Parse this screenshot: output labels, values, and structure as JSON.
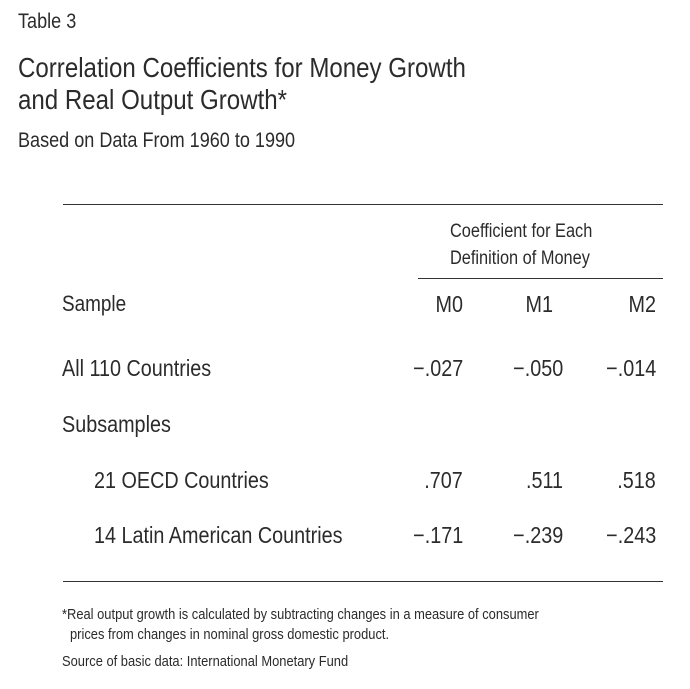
{
  "table_label": "Table 3",
  "title_line1": "Correlation Coefficients for Money Growth",
  "title_line2": "and Real Output Growth*",
  "subtitle": "Based on Data From 1960 to 1990",
  "span_header_line1": "Coefficient for Each",
  "span_header_line2": "Definition of Money",
  "columns": {
    "sample": "Sample",
    "m0": "M0",
    "m1": "M1",
    "m2": "M2"
  },
  "rows": [
    {
      "label": "All 110 Countries",
      "m0": "−.027",
      "m1": "−.050",
      "m2": "−.014"
    },
    {
      "label": "Subsamples"
    },
    {
      "label": "21 OECD Countries",
      "m0": ".707",
      "m1": ".511",
      "m2": ".518"
    },
    {
      "label": "14 Latin American Countries",
      "m0": "−.171",
      "m1": "−.239",
      "m2": "−.243"
    }
  ],
  "footnote_line1": "*Real output growth is calculated by subtracting changes in a measure of consumer",
  "footnote_line2": "prices from changes in nominal gross domestic product.",
  "source": "Source of basic data: International Monetary Fund"
}
